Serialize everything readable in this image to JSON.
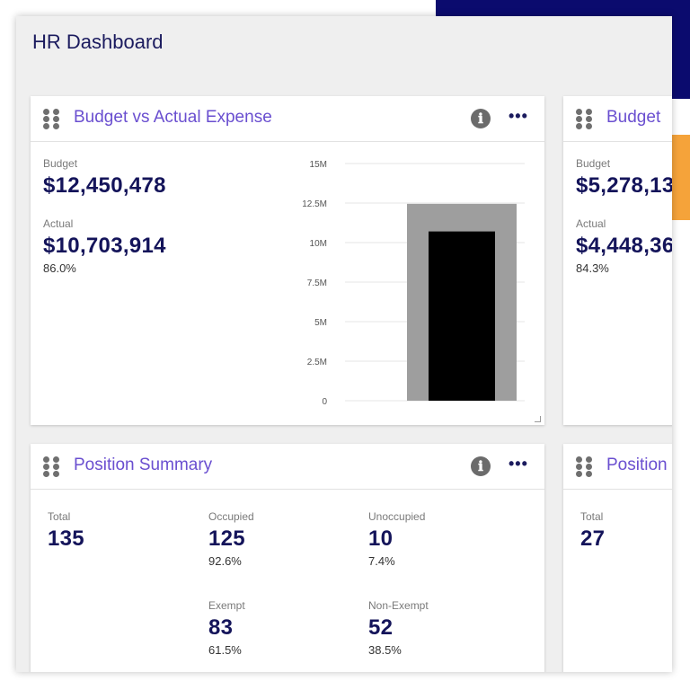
{
  "colors": {
    "navy": "#0b0b6e",
    "orange": "#f5a33a",
    "title_purple": "#6a4fd0",
    "value_navy": "#14145a",
    "budget_bar": "#9e9e9e",
    "actual_bar": "#000000"
  },
  "page": {
    "title": "HR Dashboard"
  },
  "budget_card": {
    "title": "Budget vs Actual Expense",
    "info_icon": "ℹ",
    "more_icon": "•••",
    "budget_label": "Budget",
    "budget_value": "$12,450,478",
    "actual_label": "Actual",
    "actual_value": "$10,703,914",
    "actual_pct": "86.0%"
  },
  "budget_card_2": {
    "title": "Budget",
    "budget_label": "Budget",
    "budget_value": "$5,278,13",
    "actual_label": "Actual",
    "actual_value": "$4,448,36",
    "actual_pct": "84.3%"
  },
  "position_card": {
    "title": "Position Summary",
    "info_icon": "ℹ",
    "more_icon": "•••",
    "total_label": "Total",
    "total_value": "135",
    "occupied_label": "Occupied",
    "occupied_value": "125",
    "occupied_pct": "92.6%",
    "unoccupied_label": "Unoccupied",
    "unoccupied_value": "10",
    "unoccupied_pct": "7.4%",
    "exempt_label": "Exempt",
    "exempt_value": "83",
    "exempt_pct": "61.5%",
    "nonexempt_label": "Non-Exempt",
    "nonexempt_value": "52",
    "nonexempt_pct": "38.5%"
  },
  "position_card_2": {
    "title": "Position",
    "total_label": "Total",
    "total_value": "27"
  },
  "chart_data": {
    "type": "bar",
    "categories": [
      ""
    ],
    "series": [
      {
        "name": "Budget",
        "values": [
          12450478
        ]
      },
      {
        "name": "Actual",
        "values": [
          10703914
        ]
      }
    ],
    "yticks": [
      "0",
      "2.5M",
      "5M",
      "7.5M",
      "10M",
      "12.5M",
      "15M"
    ],
    "ytick_values": [
      0,
      2500000,
      5000000,
      7500000,
      10000000,
      12500000,
      15000000
    ],
    "ylim": [
      0,
      15000000
    ],
    "grid": true,
    "legend": "none"
  }
}
